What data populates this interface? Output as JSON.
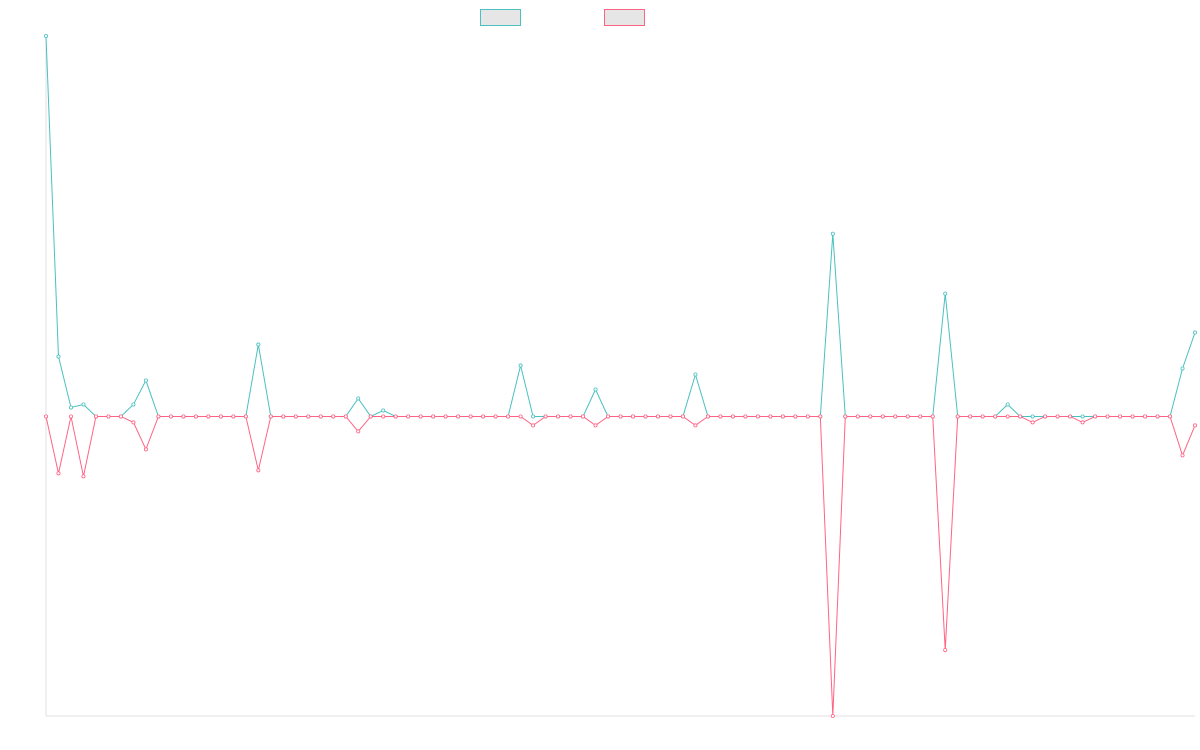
{
  "chart_data": {
    "type": "line",
    "title": "",
    "xlabel": "",
    "ylabel": "",
    "grid": false,
    "legend": "top-center",
    "x_count": 93,
    "ylim": [
      -100,
      127
    ],
    "series": [
      {
        "color": "#4bc0c0",
        "values": [
          127,
          20,
          3,
          4,
          0,
          0,
          0,
          4,
          12,
          0,
          0,
          0,
          0,
          0,
          0,
          0,
          0,
          24,
          0,
          0,
          0,
          0,
          0,
          0,
          0,
          6,
          0,
          2,
          0,
          0,
          0,
          0,
          0,
          0,
          0,
          0,
          0,
          0,
          17,
          0,
          0,
          0,
          0,
          0,
          9,
          0,
          0,
          0,
          0,
          0,
          0,
          0,
          14,
          0,
          0,
          0,
          0,
          0,
          0,
          0,
          0,
          0,
          0,
          61,
          0,
          0,
          0,
          0,
          0,
          0,
          0,
          0,
          41,
          0,
          0,
          0,
          0,
          4,
          0,
          0,
          0,
          0,
          0,
          0,
          0,
          0,
          0,
          0,
          0,
          0,
          0,
          16,
          28
        ]
      },
      {
        "color": "#ff6384",
        "values": [
          0,
          -19,
          0,
          -20,
          0,
          0,
          0,
          -2,
          -11,
          0,
          0,
          0,
          0,
          0,
          0,
          0,
          0,
          -18,
          0,
          0,
          0,
          0,
          0,
          0,
          0,
          -5,
          0,
          0,
          0,
          0,
          0,
          0,
          0,
          0,
          0,
          0,
          0,
          0,
          0,
          -3,
          0,
          0,
          0,
          0,
          -3,
          0,
          0,
          0,
          0,
          0,
          0,
          0,
          -3,
          0,
          0,
          0,
          0,
          0,
          0,
          0,
          0,
          0,
          0,
          -100,
          0,
          0,
          0,
          0,
          0,
          0,
          0,
          0,
          -78,
          0,
          0,
          0,
          0,
          0,
          0,
          -2,
          0,
          0,
          0,
          -2,
          0,
          0,
          0,
          0,
          0,
          0,
          0,
          -13,
          -3
        ]
      }
    ]
  }
}
